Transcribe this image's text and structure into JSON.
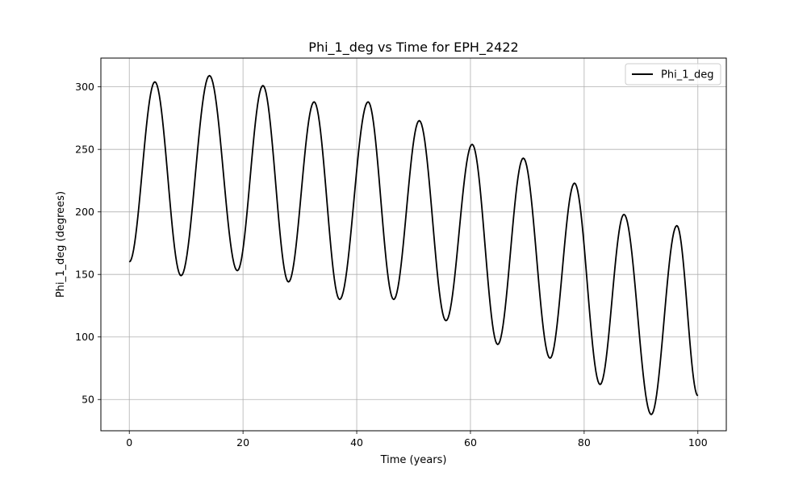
{
  "chart_data": {
    "type": "line",
    "title": "Phi_1_deg vs Time for EPH_2422",
    "xlabel": "Time (years)",
    "ylabel": "Phi_1_deg (degrees)",
    "xlim": [
      -5,
      105
    ],
    "ylim": [
      25,
      323
    ],
    "xticks": [
      0,
      20,
      40,
      60,
      80,
      100
    ],
    "yticks": [
      50,
      100,
      150,
      200,
      250,
      300
    ],
    "grid": true,
    "legend_position": "top-right",
    "series": [
      {
        "name": "Phi_1_deg",
        "color": "#000000",
        "points": [
          [
            0,
            160
          ],
          [
            4.5,
            304
          ],
          [
            9.1,
            149
          ],
          [
            14.1,
            309
          ],
          [
            19.0,
            153
          ],
          [
            23.5,
            301
          ],
          [
            28.0,
            144
          ],
          [
            32.5,
            288
          ],
          [
            37.0,
            130
          ],
          [
            42.0,
            288
          ],
          [
            46.5,
            130
          ],
          [
            51.0,
            273
          ],
          [
            55.7,
            113
          ],
          [
            60.3,
            254
          ],
          [
            64.8,
            94
          ],
          [
            69.3,
            243
          ],
          [
            74.0,
            83
          ],
          [
            78.3,
            223
          ],
          [
            82.8,
            62
          ],
          [
            87.0,
            198
          ],
          [
            91.8,
            38
          ],
          [
            96.3,
            189
          ],
          [
            100,
            53
          ]
        ]
      }
    ]
  }
}
